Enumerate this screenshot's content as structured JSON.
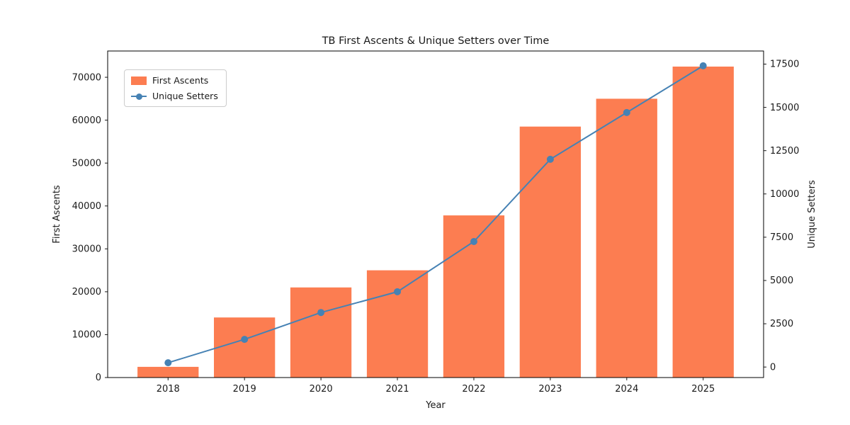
{
  "figure": {
    "title": "TB First Ascents & Unique Setters over Time",
    "xlabel": "Year",
    "ylabel_left": "First Ascents",
    "ylabel_right": "Unique Setters",
    "background": "#FFFFFF"
  },
  "legend": {
    "items": [
      {
        "label": "First Ascents",
        "swatch": "bar",
        "color": "#FC7D51"
      },
      {
        "label": "Unique Setters",
        "swatch": "line-marker",
        "color": "#4682B4"
      }
    ]
  },
  "chart_data": {
    "type": "bar",
    "subtype": "bar+line dual-axis combo",
    "title": "TB First Ascents & Unique Setters over Time",
    "xlabel": "Year",
    "categories": [
      "2018",
      "2019",
      "2020",
      "2021",
      "2022",
      "2023",
      "2024",
      "2025"
    ],
    "series": [
      {
        "name": "First Ascents",
        "type": "bar",
        "axis": "left",
        "color": "#FC7D51",
        "values": [
          2500,
          14000,
          21000,
          25000,
          37800,
          58500,
          65000,
          72500
        ]
      },
      {
        "name": "Unique Setters",
        "type": "line",
        "axis": "right",
        "color": "#4682B4",
        "marker": "circle",
        "values": [
          250,
          1600,
          3150,
          4350,
          7250,
          12000,
          14700,
          17400
        ]
      }
    ],
    "left_axis": {
      "label": "First Ascents",
      "ticks": [
        0,
        10000,
        20000,
        30000,
        40000,
        50000,
        60000,
        70000
      ],
      "range": [
        0,
        76125
      ],
      "text_color": "#1a1a1a"
    },
    "right_axis": {
      "label": "Unique Setters",
      "ticks": [
        0,
        2500,
        5000,
        7500,
        10000,
        12500,
        15000,
        17500
      ],
      "range": [
        -607,
        18257
      ],
      "text_color": "#4682B4"
    },
    "x_axis": {
      "label": "Year",
      "range": [
        2017.21,
        2025.79
      ]
    },
    "bar_rel_width": 0.8,
    "grid": false,
    "legend_position": "upper left"
  }
}
